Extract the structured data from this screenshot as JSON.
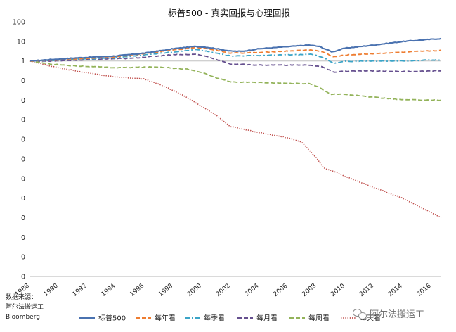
{
  "chart_data": {
    "type": "line",
    "title": "标普500 - 真实回报与心理回报",
    "y_scale": "log",
    "y_tick_labels": [
      "100",
      "10",
      "1",
      "0",
      "0",
      "0",
      "0",
      "0",
      "0",
      "0",
      "0",
      "0",
      "0",
      "0"
    ],
    "x_tick_labels": [
      "1988",
      "1990",
      "1992",
      "1994",
      "1996",
      "1998",
      "2000",
      "2002",
      "2004",
      "2006",
      "2008",
      "2010",
      "2012",
      "2014",
      "2016"
    ],
    "x_range": [
      1988,
      2016.7
    ],
    "reference_line_y": 1,
    "grid": false,
    "legend_position": "bottom",
    "series": [
      {
        "name": "标普500",
        "color": "#4a72b0",
        "dash": "solid",
        "x": [
          1988,
          1990,
          1991,
          1994,
          1996,
          1998,
          1999.5,
          2000.2,
          2001,
          2002,
          2002.8,
          2004,
          2007.5,
          2008.2,
          2009.1,
          2010,
          2012,
          2014,
          2016.7
        ],
        "y": [
          1,
          1.25,
          1.4,
          1.8,
          2.5,
          4.2,
          5.5,
          5.2,
          4.3,
          3.2,
          3.1,
          4.2,
          6.5,
          5.5,
          2.9,
          4.5,
          6.5,
          9.8,
          14
        ]
      },
      {
        "name": "每年看",
        "color": "#ee7d31",
        "dash": "dashed",
        "x": [
          1988,
          1990,
          1994,
          1998,
          1999.6,
          2000.5,
          2002,
          2004,
          2007.6,
          2008.4,
          2009.2,
          2010,
          2012,
          2014,
          2016.7
        ],
        "y": [
          1,
          1.15,
          1.6,
          3.6,
          4.8,
          4.2,
          2.5,
          2.7,
          3.7,
          3.0,
          1.6,
          2.0,
          2.4,
          2.8,
          3.5
        ]
      },
      {
        "name": "每季看",
        "color": "#3ba4c7",
        "dash": "dash-dot",
        "x": [
          1988,
          1990,
          1994,
          1998,
          1999.6,
          2000.5,
          2002,
          2004,
          2007.6,
          2008.4,
          2009.2,
          2010,
          2012,
          2014,
          2016.7
        ],
        "y": [
          1,
          1.1,
          1.45,
          2.9,
          3.8,
          3.0,
          1.8,
          1.9,
          2.2,
          1.6,
          0.75,
          0.95,
          1.0,
          1.0,
          1.15
        ]
      },
      {
        "name": "每月看",
        "color": "#66508f",
        "dash": "dashed",
        "x": [
          1988,
          1990,
          1993,
          1995,
          1998,
          1999.6,
          2000.4,
          2002,
          2004,
          2007.6,
          2008.4,
          2009.2,
          2010,
          2012,
          2014,
          2016.7
        ],
        "y": [
          1,
          1.0,
          1.25,
          1.35,
          2.1,
          2.2,
          1.7,
          0.7,
          0.62,
          0.62,
          0.5,
          0.27,
          0.3,
          0.31,
          0.29,
          0.31
        ]
      },
      {
        "name": "每周看",
        "color": "#93b35a",
        "dash": "dashed",
        "x": [
          1988,
          1989.5,
          1990.5,
          1994,
          1997,
          1999,
          2000,
          2001,
          2002,
          2004,
          2006,
          2007.5,
          2008.2,
          2009,
          2010,
          2012,
          2014,
          2016.7
        ],
        "y": [
          1,
          0.7,
          0.6,
          0.45,
          0.5,
          0.38,
          0.26,
          0.14,
          0.085,
          0.08,
          0.072,
          0.07,
          0.045,
          0.02,
          0.02,
          0.014,
          0.0105,
          0.01
        ]
      },
      {
        "name": "每天看",
        "color": "#c0504d",
        "dash": "dotted",
        "x": [
          1988,
          1990,
          1992,
          1994,
          1996,
          1997,
          1998,
          1999,
          2000,
          2001,
          2002,
          2004,
          2006,
          2007,
          2008,
          2008.5,
          2009.2,
          2010,
          2012,
          2014,
          2016.7
        ],
        "y": [
          1,
          0.45,
          0.25,
          0.15,
          0.12,
          0.065,
          0.032,
          0.013,
          0.005,
          0.0017,
          0.00045,
          0.00022,
          0.00012,
          7e-05,
          1.1e-05,
          3.5e-06,
          2.3e-06,
          1.3e-06,
          3.5e-07,
          1e-07,
          1e-08
        ]
      }
    ]
  },
  "source": {
    "label": "数据来源：",
    "lines": [
      "阿尔法搬运工",
      "Bloomberg"
    ]
  },
  "watermark": {
    "text": "阿尔法搬运工"
  }
}
